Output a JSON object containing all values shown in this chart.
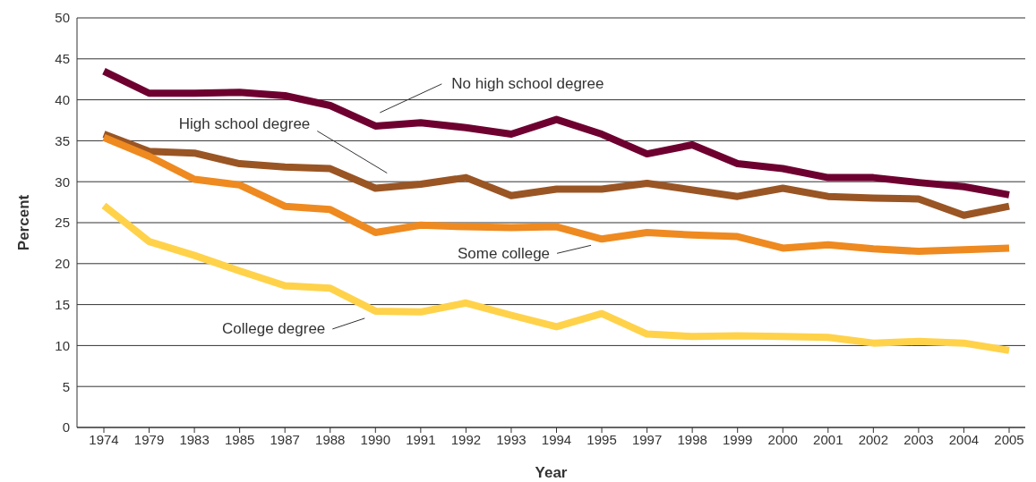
{
  "chart_data": {
    "type": "line",
    "xlabel": "Year",
    "ylabel": "Percent",
    "categories": [
      "1974",
      "1979",
      "1983",
      "1985",
      "1987",
      "1988",
      "1990",
      "1991",
      "1992",
      "1993",
      "1994",
      "1995",
      "1997",
      "1998",
      "1999",
      "2000",
      "2001",
      "2002",
      "2003",
      "2004",
      "2005"
    ],
    "series": [
      {
        "name": "No high school degree",
        "color": "#6e0030",
        "values": [
          43.5,
          40.8,
          40.8,
          40.9,
          40.5,
          39.3,
          36.8,
          37.2,
          36.6,
          35.8,
          37.6,
          35.8,
          33.4,
          34.5,
          32.2,
          31.6,
          30.5,
          30.5,
          29.9,
          29.4,
          28.4
        ]
      },
      {
        "name": "High school degree",
        "color": "#9a5524",
        "values": [
          35.8,
          33.7,
          33.5,
          32.2,
          31.8,
          31.6,
          29.2,
          29.7,
          30.5,
          28.3,
          29.1,
          29.1,
          29.8,
          29.0,
          28.2,
          29.2,
          28.2,
          28.0,
          27.9,
          25.9,
          27.0
        ]
      },
      {
        "name": "Some college",
        "color": "#ee8a20",
        "values": [
          35.4,
          33.1,
          30.3,
          29.6,
          27.0,
          26.6,
          23.8,
          24.7,
          24.5,
          24.4,
          24.5,
          23.0,
          23.8,
          23.5,
          23.3,
          21.9,
          22.3,
          21.8,
          21.5,
          21.7,
          21.9
        ]
      },
      {
        "name": "College degree",
        "color": "#ffd24a",
        "values": [
          27.1,
          22.7,
          21.0,
          19.1,
          17.3,
          17.0,
          14.2,
          14.1,
          15.2,
          13.7,
          12.3,
          13.9,
          11.4,
          11.1,
          11.2,
          11.1,
          11.0,
          10.3,
          10.5,
          10.3,
          9.4
        ]
      }
    ],
    "ylim": [
      0,
      50
    ],
    "yticks": [
      0,
      5,
      10,
      15,
      20,
      25,
      30,
      35,
      40,
      45,
      50
    ],
    "grid": "y",
    "legend": false,
    "marker": "none",
    "line_style": "solid"
  }
}
